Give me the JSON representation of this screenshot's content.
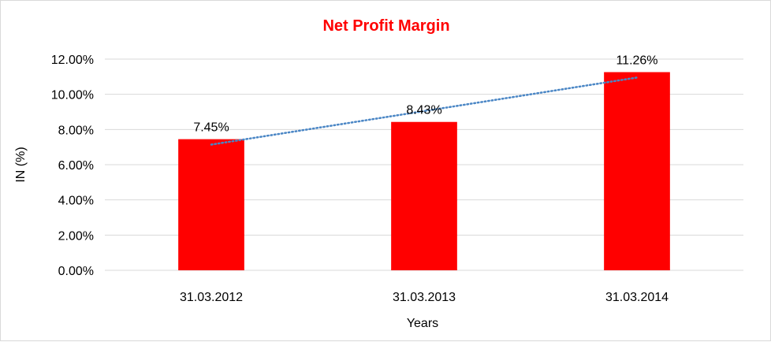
{
  "chart_data": {
    "type": "bar",
    "title": "Net Profit Margin",
    "xlabel": "Years",
    "ylabel": "IN (%)",
    "categories": [
      "31.03.2012",
      "31.03.2013",
      "31.03.2014"
    ],
    "values": [
      7.45,
      8.43,
      11.26
    ],
    "data_labels": [
      "7.45%",
      "8.43%",
      "11.26%"
    ],
    "ylim": [
      0,
      12
    ],
    "yticks": [
      0,
      2,
      4,
      6,
      8,
      10,
      12
    ],
    "ytick_labels": [
      "0.00%",
      "2.00%",
      "4.00%",
      "6.00%",
      "8.00%",
      "10.00%",
      "12.00%"
    ],
    "grid": true,
    "trendline": {
      "type": "linear",
      "style": "dotted"
    },
    "colors": {
      "bar": "#ff0000",
      "title": "#ff0000",
      "trendline": "#4a86c5",
      "grid": "#d9d9d9"
    }
  }
}
